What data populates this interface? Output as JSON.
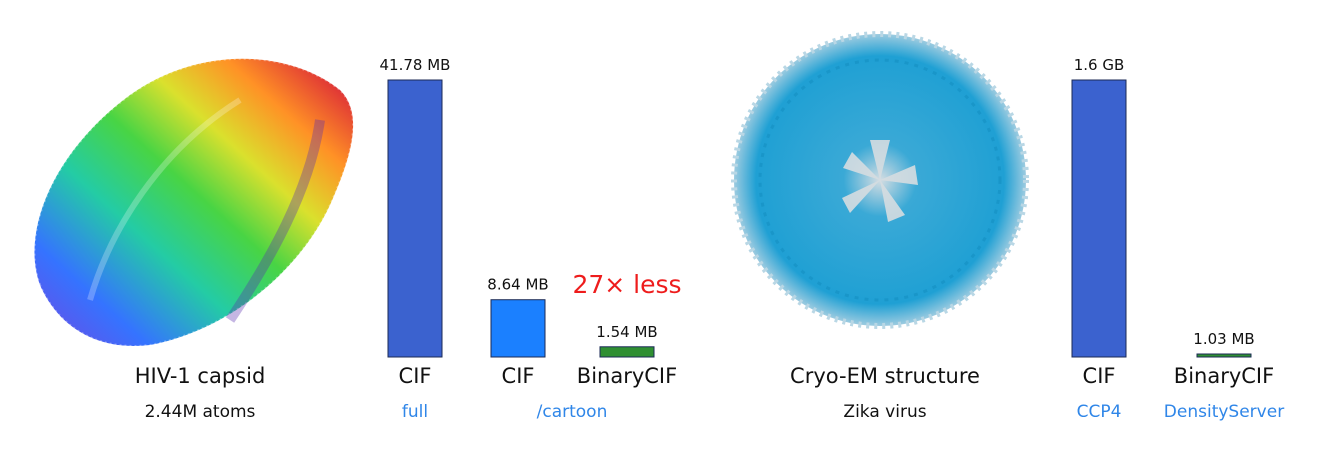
{
  "colors": {
    "bar_dark": "#3b62cf",
    "bar_mid": "#1b80ff",
    "bar_green": "#2f8f32",
    "link_blue": "#2f86e8",
    "highlight_red": "#ee1c1c"
  },
  "images": {
    "hiv": {
      "name": "HIV-1 capsid",
      "detail": "2.44M atoms"
    },
    "zika": {
      "name": "Cryo-EM structure",
      "detail": "Zika virus"
    }
  },
  "highlight": "27× less",
  "chart_data": [
    {
      "type": "bar",
      "categories": [
        "CIF",
        "CIF",
        "BinaryCIF"
      ],
      "subcategories": [
        "full",
        "/cartoon",
        ""
      ],
      "values": [
        41.78,
        8.64,
        1.54
      ],
      "value_labels": [
        "41.78 MB",
        "8.64 MB",
        "1.54 MB"
      ],
      "colors": [
        "#3b62cf",
        "#1b80ff",
        "#2f8f32"
      ],
      "ylim": [
        0,
        41.78
      ],
      "unit": "MB"
    },
    {
      "type": "bar",
      "categories": [
        "CIF",
        "BinaryCIF"
      ],
      "subcategories": [
        "CCP4",
        "DensityServer"
      ],
      "values": [
        1600,
        1.03
      ],
      "value_labels": [
        "1.6 GB",
        "1.03 MB"
      ],
      "colors": [
        "#3b62cf",
        "#2f8f32"
      ],
      "ylim": [
        0,
        1600
      ],
      "unit": "MB"
    }
  ]
}
